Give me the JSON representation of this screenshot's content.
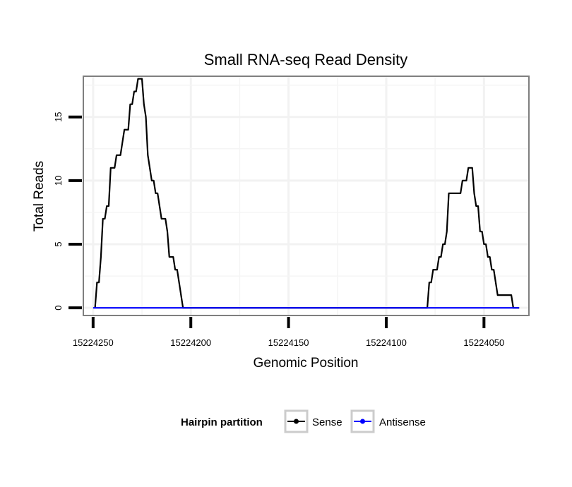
{
  "chart_data": {
    "type": "line",
    "title": "Small RNA-seq Read Density",
    "xlabel": "Genomic Position",
    "ylabel": "Total Reads",
    "x_reversed": true,
    "xlim": [
      15224255,
      15224027
    ],
    "ylim": [
      -0.6,
      18.2
    ],
    "x_ticks": [
      15224250,
      15224200,
      15224150,
      15224100,
      15224050
    ],
    "x_tick_labels": [
      "15224250",
      "15224200",
      "15224150",
      "15224100",
      "15224050"
    ],
    "y_ticks": [
      0,
      5,
      10,
      15
    ],
    "y_tick_labels": [
      "0",
      "5",
      "10",
      "15"
    ],
    "grid": true,
    "legend": {
      "title": "Hairpin partition",
      "placement": "bottom",
      "entries": [
        {
          "name": "Sense",
          "color": "#000000"
        },
        {
          "name": "Antisense",
          "color": "#0000ff"
        }
      ]
    },
    "series": [
      {
        "name": "Sense",
        "color": "#000000",
        "x": [
          15224249,
          15224248,
          15224247,
          15224246,
          15224245,
          15224244,
          15224243,
          15224242,
          15224241,
          15224240,
          15224239,
          15224238,
          15224237,
          15224236,
          15224235,
          15224234,
          15224233,
          15224232,
          15224231,
          15224230,
          15224229,
          15224228,
          15224227,
          15224226,
          15224225,
          15224224,
          15224223,
          15224222,
          15224221,
          15224220,
          15224219,
          15224218,
          15224217,
          15224216,
          15224215,
          15224214,
          15224213,
          15224212,
          15224211,
          15224210,
          15224209,
          15224208,
          15224207,
          15224206,
          15224205,
          15224204,
          15224203,
          15224202,
          15224201,
          15224200,
          15224099,
          15224079,
          15224078,
          15224077,
          15224076,
          15224075,
          15224074,
          15224073,
          15224072,
          15224071,
          15224070,
          15224069,
          15224068,
          15224067,
          15224066,
          15224065,
          15224064,
          15224063,
          15224062,
          15224061,
          15224060,
          15224059,
          15224058,
          15224057,
          15224056,
          15224055,
          15224054,
          15224053,
          15224052,
          15224051,
          15224050,
          15224049,
          15224048,
          15224047,
          15224046,
          15224045,
          15224044,
          15224043,
          15224042,
          15224041,
          15224040,
          15224039,
          15224038,
          15224037,
          15224036,
          15224035,
          15224034,
          15224033,
          15224032
        ],
        "values": [
          0,
          2,
          2,
          4,
          7,
          7,
          8,
          8,
          11,
          11,
          11,
          12,
          12,
          12,
          13,
          14,
          14,
          14,
          16,
          16,
          17,
          17,
          18,
          18,
          18,
          16,
          15,
          12,
          11,
          10,
          10,
          9,
          9,
          8,
          7,
          7,
          7,
          6,
          4,
          4,
          4,
          3,
          3,
          2,
          1,
          0,
          0,
          0,
          0,
          0,
          0,
          0,
          2,
          2,
          3,
          3,
          3,
          4,
          4,
          5,
          5,
          6,
          9,
          9,
          9,
          9,
          9,
          9,
          9,
          10,
          10,
          10,
          11,
          11,
          11,
          9,
          8,
          8,
          6,
          6,
          5,
          5,
          4,
          4,
          3,
          3,
          2,
          1,
          1,
          1,
          1,
          1,
          1,
          1,
          1,
          0,
          0,
          0,
          0
        ]
      },
      {
        "name": "Antisense",
        "color": "#0000ff",
        "x": [
          15224250,
          15224032
        ],
        "values": [
          0,
          0
        ]
      }
    ]
  }
}
